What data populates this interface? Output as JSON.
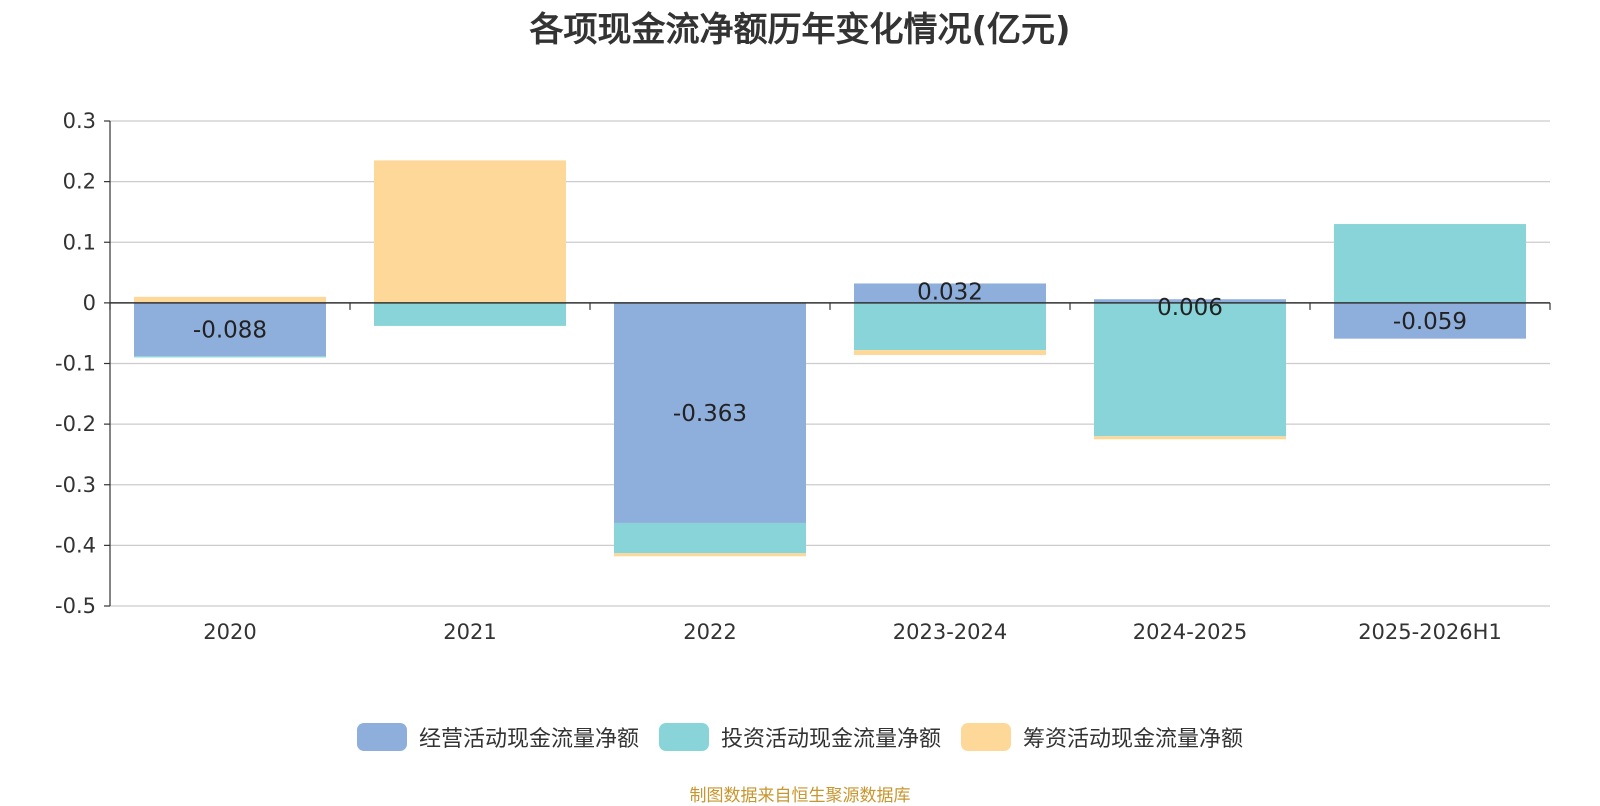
{
  "chart_data": {
    "type": "bar",
    "stacked": true,
    "title": "各项现金流净额历年变化情况(亿元)",
    "categories": [
      "2020",
      "2021",
      "2022",
      "2023-2024",
      "2024-2025",
      "2025-2026H1"
    ],
    "series": [
      {
        "name": "经营活动现金流量净额",
        "color": "#8eaedb",
        "values": [
          -0.088,
          0,
          -0.363,
          0.032,
          0.006,
          -0.059
        ]
      },
      {
        "name": "投资活动现金流量净额",
        "color": "#88d4d8",
        "values": [
          -0.002,
          -0.038,
          -0.05,
          -0.078,
          -0.22,
          0.13
        ]
      },
      {
        "name": "筹资活动现金流量净额",
        "color": "#fed898",
        "values": [
          0.01,
          0.235,
          -0.005,
          -0.008,
          -0.005,
          0
        ]
      }
    ],
    "data_labels": [
      "-0.088",
      "",
      "-0.363",
      "0.032",
      "0.006",
      "-0.059"
    ],
    "y_ticks": [
      "0.3",
      "0.2",
      "0.1",
      "0",
      "-0.1",
      "-0.2",
      "-0.3",
      "-0.4",
      "-0.5"
    ],
    "ylim": [
      -0.5,
      0.3
    ],
    "grid": true,
    "legend_position": "bottom"
  },
  "source_note": "制图数据来自恒生聚源数据库"
}
